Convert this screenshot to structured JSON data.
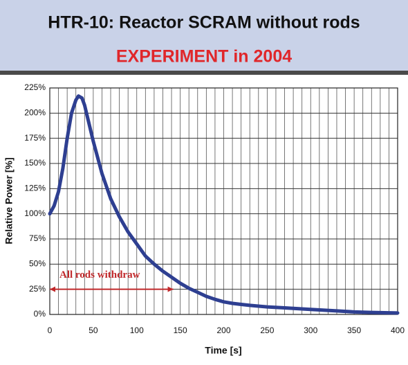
{
  "chart_data": {
    "type": "line",
    "title": "HTR-10: Reactor SCRAM without rods",
    "subtitle": "EXPERIMENT in 2004",
    "x_label": "Time [s]",
    "y_label": "Relative Power [%]",
    "x": [
      0,
      5,
      10,
      15,
      20,
      25,
      30,
      33,
      37,
      40,
      45,
      50,
      60,
      70,
      80,
      90,
      100,
      110,
      120,
      130,
      140,
      150,
      160,
      170,
      180,
      190,
      200,
      210,
      220,
      230,
      250,
      270,
      300,
      330,
      350,
      370,
      400
    ],
    "series": [
      {
        "name": "Relative Power",
        "color": "#2e3f91",
        "values": [
          100,
          108,
          122,
          145,
          175,
          200,
          213,
          217,
          215,
          208,
          190,
          172,
          140,
          115,
          97,
          82,
          70,
          58,
          50,
          43,
          37,
          31,
          26,
          22,
          18,
          15,
          12.5,
          11,
          10,
          9,
          7.5,
          6.5,
          5,
          3.5,
          2.5,
          2,
          1.5
        ]
      }
    ],
    "xlim": [
      0,
      400
    ],
    "ylim": [
      0,
      225
    ],
    "xticks": [
      0,
      50,
      100,
      150,
      200,
      250,
      300,
      350,
      400
    ],
    "x_grid": [
      0,
      10,
      20,
      30,
      40,
      50,
      60,
      70,
      80,
      90,
      100,
      110,
      120,
      130,
      140,
      150,
      160,
      170,
      180,
      190,
      200,
      210,
      220,
      230,
      240,
      250,
      260,
      270,
      280,
      290,
      300,
      310,
      320,
      330,
      340,
      350,
      360,
      370,
      380,
      390,
      400
    ],
    "yticks": [
      {
        "value": 0,
        "label": "0%"
      },
      {
        "value": 25,
        "label": "25%"
      },
      {
        "value": 50,
        "label": "50%"
      },
      {
        "value": 75,
        "label": "75%"
      },
      {
        "value": 100,
        "label": "100%"
      },
      {
        "value": 125,
        "label": "125%"
      },
      {
        "value": 150,
        "label": "150%"
      },
      {
        "value": 175,
        "label": "175%"
      },
      {
        "value": 200,
        "label": "200%"
      },
      {
        "value": 225,
        "label": "225%"
      }
    ],
    "grid": true,
    "annotation": {
      "text": "All rods withdraw",
      "color": "#c0282a",
      "x": [
        0,
        142
      ],
      "y": 25
    }
  }
}
